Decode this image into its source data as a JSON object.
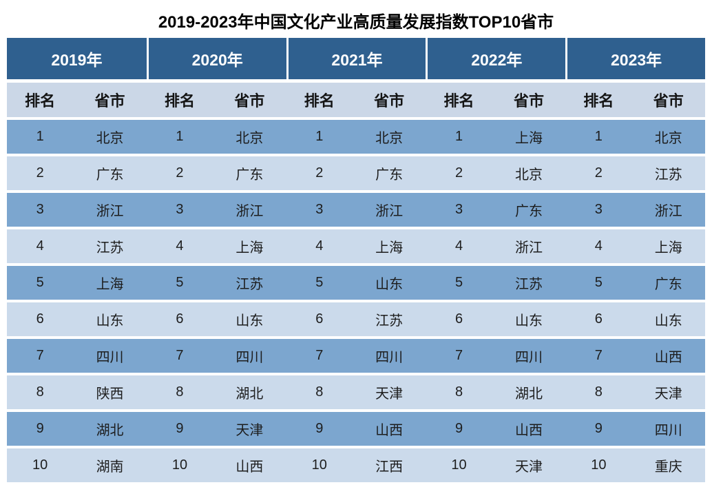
{
  "title": "2019-2023年中国文化产业高质量发展指数TOP10省市",
  "table": {
    "years": [
      "2019年",
      "2020年",
      "2021年",
      "2022年",
      "2023年"
    ],
    "col_rank": "排名",
    "col_province": "省市",
    "rows": [
      [
        "1",
        "北京",
        "1",
        "北京",
        "1",
        "北京",
        "1",
        "上海",
        "1",
        "北京"
      ],
      [
        "2",
        "广东",
        "2",
        "广东",
        "2",
        "广东",
        "2",
        "北京",
        "2",
        "江苏"
      ],
      [
        "3",
        "浙江",
        "3",
        "浙江",
        "3",
        "浙江",
        "3",
        "广东",
        "3",
        "浙江"
      ],
      [
        "4",
        "江苏",
        "4",
        "上海",
        "4",
        "上海",
        "4",
        "浙江",
        "4",
        "上海"
      ],
      [
        "5",
        "上海",
        "5",
        "江苏",
        "5",
        "山东",
        "5",
        "江苏",
        "5",
        "广东"
      ],
      [
        "6",
        "山东",
        "6",
        "山东",
        "6",
        "江苏",
        "6",
        "山东",
        "6",
        "山东"
      ],
      [
        "7",
        "四川",
        "7",
        "四川",
        "7",
        "四川",
        "7",
        "四川",
        "7",
        "山西"
      ],
      [
        "8",
        "陕西",
        "8",
        "湖北",
        "8",
        "天津",
        "8",
        "湖北",
        "8",
        "天津"
      ],
      [
        "9",
        "湖北",
        "9",
        "天津",
        "9",
        "山西",
        "9",
        "山西",
        "9",
        "四川"
      ],
      [
        "10",
        "湖南",
        "10",
        "山西",
        "10",
        "江西",
        "10",
        "天津",
        "10",
        "重庆"
      ]
    ]
  },
  "colors": {
    "header_bg": "#2f608f",
    "header_text": "#ffffff",
    "subheader_bg": "#cbd7e7",
    "row_odd_bg": "#7ca6cf",
    "row_even_bg": "#cbdaeb",
    "cell_text": "#1d1d1d",
    "page_bg": "#ffffff"
  },
  "chart_data": {
    "type": "table",
    "title": "2019-2023年中国文化产业高质量发展指数TOP10省市",
    "columns": [
      "2019年",
      "2020年",
      "2021年",
      "2022年",
      "2023年"
    ],
    "sub_columns": [
      "排名",
      "省市"
    ],
    "ranks": [
      1,
      2,
      3,
      4,
      5,
      6,
      7,
      8,
      9,
      10
    ],
    "rankings": {
      "2019年": [
        "北京",
        "广东",
        "浙江",
        "江苏",
        "上海",
        "山东",
        "四川",
        "陕西",
        "湖北",
        "湖南"
      ],
      "2020年": [
        "北京",
        "广东",
        "浙江",
        "上海",
        "江苏",
        "山东",
        "四川",
        "湖北",
        "天津",
        "山西"
      ],
      "2021年": [
        "北京",
        "广东",
        "浙江",
        "上海",
        "山东",
        "江苏",
        "四川",
        "天津",
        "山西",
        "江西"
      ],
      "2022年": [
        "上海",
        "北京",
        "广东",
        "浙江",
        "江苏",
        "山东",
        "四川",
        "湖北",
        "山西",
        "天津"
      ],
      "2023年": [
        "北京",
        "江苏",
        "浙江",
        "上海",
        "广东",
        "山东",
        "山西",
        "天津",
        "四川",
        "重庆"
      ]
    }
  }
}
